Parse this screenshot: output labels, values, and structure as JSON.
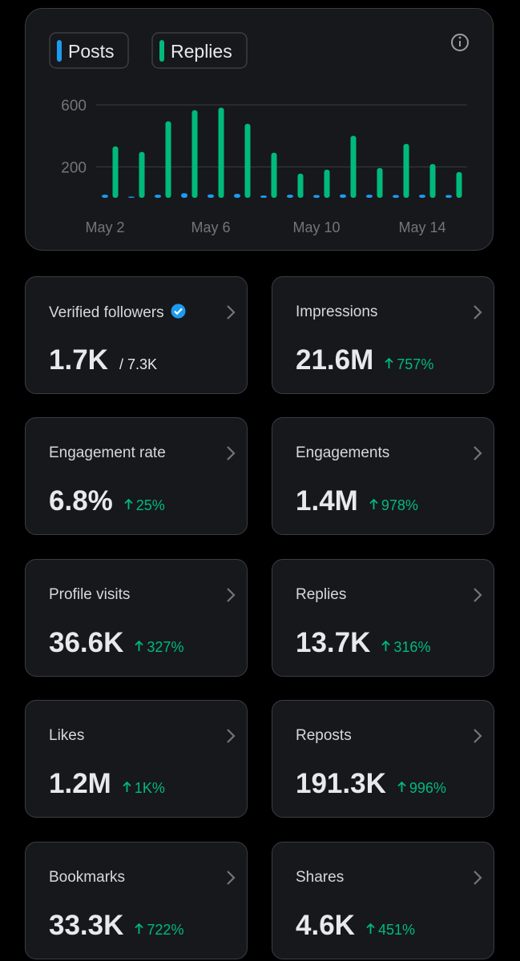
{
  "chart_data": {
    "type": "bar",
    "categories": [
      "May 2",
      null,
      null,
      null,
      "May 6",
      null,
      null,
      null,
      "May 10",
      null,
      null,
      null,
      "May 14",
      null
    ],
    "series": [
      {
        "name": "Posts",
        "color": "#1d9bf0",
        "values": [
          20,
          8,
          20,
          30,
          22,
          25,
          15,
          20,
          18,
          22,
          20,
          18,
          20,
          18
        ]
      },
      {
        "name": "Replies",
        "color": "#00ba7c",
        "values": [
          332,
          296,
          494,
          566,
          582,
          478,
          291,
          156,
          182,
          400,
          192,
          348,
          218,
          166
        ]
      }
    ],
    "ylim": [
      0,
      600
    ],
    "yticks": [
      200,
      600
    ],
    "grid": true
  },
  "cards": [
    {
      "label": "Verified followers",
      "value": "1.7K",
      "total": "/ 7.3K"
    },
    {
      "label": "Impressions",
      "value": "21.6M",
      "change": "757%"
    },
    {
      "label": "Engagement rate",
      "value": "6.8%",
      "change": "25%"
    },
    {
      "label": "Engagements",
      "value": "1.4M",
      "change": "978%"
    },
    {
      "label": "Profile visits",
      "value": "36.6K",
      "change": "327%"
    },
    {
      "label": "Replies",
      "value": "13.7K",
      "change": "316%"
    },
    {
      "label": "Likes",
      "value": "1.2M",
      "change": "1K%"
    },
    {
      "label": "Reposts",
      "value": "191.3K",
      "change": "996%"
    },
    {
      "label": "Bookmarks",
      "value": "33.3K",
      "change": "722%"
    },
    {
      "label": "Shares",
      "value": "4.6K",
      "change": "451%"
    }
  ]
}
